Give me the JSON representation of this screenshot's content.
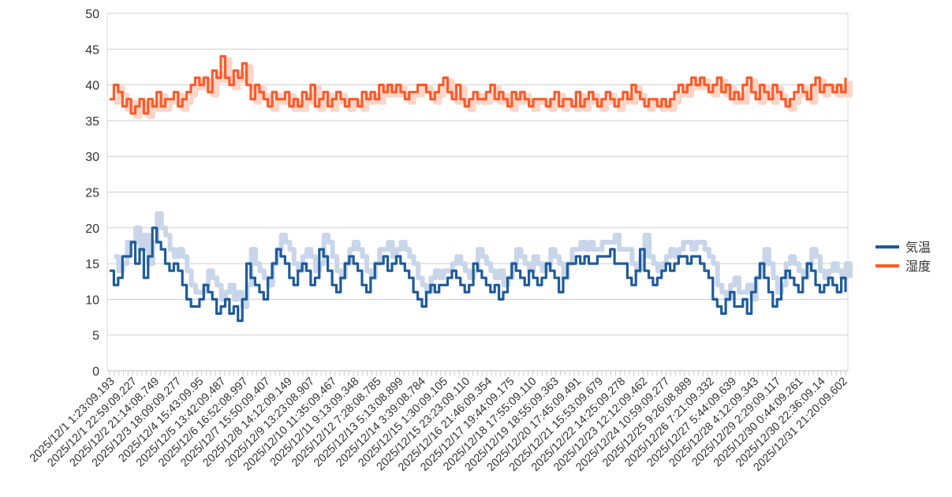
{
  "chart_data": {
    "type": "line",
    "title": "",
    "xlabel": "",
    "ylabel": "",
    "ylim": [
      0,
      50
    ],
    "yticks": [
      0,
      5,
      10,
      15,
      20,
      25,
      30,
      35,
      40,
      45,
      50
    ],
    "grid": true,
    "legend_position": "right",
    "x_tick_labels": [
      "2025/12/1 1:23:09.193",
      "2025/12/1 22:59:09.227",
      "2025/12/2 21:14:08.749",
      "2025/12/3 18:09:09.277",
      "2025/12/4 15:43:09.95",
      "2025/12/5 13:42:09.487",
      "2025/12/6 16:52:08.997",
      "2025/12/7 15:50:09.407",
      "2025/12/8 14:12:09.149",
      "2025/12/9 13:23:08.907",
      "2025/12/10 11:35:09.467",
      "2025/12/11 9:13:09.348",
      "2025/12/12 7:28:08.785",
      "2025/12/13 5:13:08.899",
      "2025/12/14 3:39:08.784",
      "2025/12/15 1:30:09.105",
      "2025/12/15 23:23:09.110",
      "2025/12/16 21:46:09.354",
      "2025/12/17 19:44:09.175",
      "2025/12/18 17:55:09.110",
      "2025/12/19 18:55:09.363",
      "2025/12/20 17:45:09.491",
      "2025/12/21 15:53:09.679",
      "2025/12/22 14:25:09.278",
      "2025/12/23 12:12:09.462",
      "2025/12/24 10:59:09.277",
      "2025/12/25 9:26:08.889",
      "2025/12/26 7:21:09.332",
      "2025/12/27 5:44:09.639",
      "2025/12/28 4:12:09.343",
      "2025/12/29 2:29:09.117",
      "2025/12/30 0:44:09.261",
      "2025/12/30 22:36:09.14",
      "2025/12/31 21:20:09.602"
    ],
    "series": [
      {
        "name": "気温",
        "color": "#1f5b9a",
        "shadow_color": "#c9d6ea",
        "values": [
          14,
          12,
          13,
          16,
          16,
          18,
          15,
          17,
          13,
          16,
          20,
          18,
          17,
          15,
          14,
          15,
          14,
          12,
          10,
          9,
          9,
          10,
          12,
          11,
          10,
          8,
          9,
          10,
          8,
          9,
          7,
          10,
          15,
          13,
          12,
          11,
          10,
          13,
          15,
          17,
          16,
          15,
          13,
          12,
          14,
          15,
          14,
          12,
          13,
          17,
          16,
          14,
          12,
          11,
          13,
          15,
          16,
          15,
          14,
          12,
          11,
          13,
          15,
          15,
          16,
          14,
          15,
          16,
          15,
          14,
          13,
          11,
          10,
          9,
          11,
          12,
          11,
          12,
          12,
          13,
          14,
          13,
          12,
          11,
          12,
          15,
          14,
          13,
          12,
          11,
          12,
          10,
          11,
          13,
          15,
          14,
          13,
          12,
          14,
          13,
          12,
          13,
          15,
          14,
          13,
          11,
          13,
          15,
          15,
          16,
          15,
          16,
          15,
          15,
          16,
          16,
          16,
          17,
          15,
          15,
          15,
          13,
          12,
          14,
          17,
          14,
          13,
          12,
          13,
          14,
          15,
          14,
          15,
          16,
          16,
          15,
          16,
          16,
          15,
          14,
          13,
          10,
          9,
          8,
          10,
          11,
          9,
          9,
          10,
          8,
          11,
          13,
          15,
          13,
          11,
          9,
          10,
          13,
          14,
          13,
          12,
          11,
          13,
          15,
          14,
          12,
          11,
          12,
          13,
          12,
          11,
          13,
          11
        ]
      },
      {
        "name": "湿度",
        "color": "#ff5a28",
        "shadow_color": "#ffd5c8",
        "values": [
          38,
          40,
          39,
          37,
          38,
          36,
          37,
          38,
          36,
          38,
          37,
          39,
          37,
          38,
          38,
          39,
          37,
          38,
          39,
          40,
          41,
          40,
          41,
          39,
          42,
          41,
          44,
          41,
          40,
          42,
          41,
          43,
          40,
          38,
          40,
          39,
          38,
          37,
          39,
          38,
          38,
          39,
          37,
          38,
          37,
          39,
          38,
          40,
          37,
          38,
          39,
          37,
          38,
          39,
          38,
          37,
          38,
          38,
          37,
          39,
          38,
          39,
          38,
          40,
          39,
          40,
          39,
          40,
          39,
          38,
          39,
          39,
          40,
          40,
          39,
          38,
          39,
          40,
          41,
          39,
          38,
          40,
          38,
          37,
          38,
          39,
          38,
          38,
          39,
          40,
          38,
          39,
          38,
          37,
          39,
          38,
          39,
          38,
          37,
          38,
          38,
          38,
          37,
          38,
          39,
          37,
          38,
          38,
          37,
          39,
          37,
          38,
          39,
          38,
          37,
          38,
          39,
          38,
          37,
          38,
          39,
          38,
          40,
          39,
          38,
          37,
          38,
          38,
          37,
          38,
          37,
          38,
          39,
          40,
          39,
          40,
          41,
          40,
          41,
          40,
          39,
          40,
          41,
          39,
          40,
          38,
          39,
          38,
          40,
          41,
          39,
          38,
          40,
          39,
          38,
          40,
          39,
          38,
          37,
          38,
          39,
          40,
          39,
          38,
          40,
          41,
          39,
          40,
          40,
          39,
          40,
          39,
          41
        ]
      }
    ]
  }
}
